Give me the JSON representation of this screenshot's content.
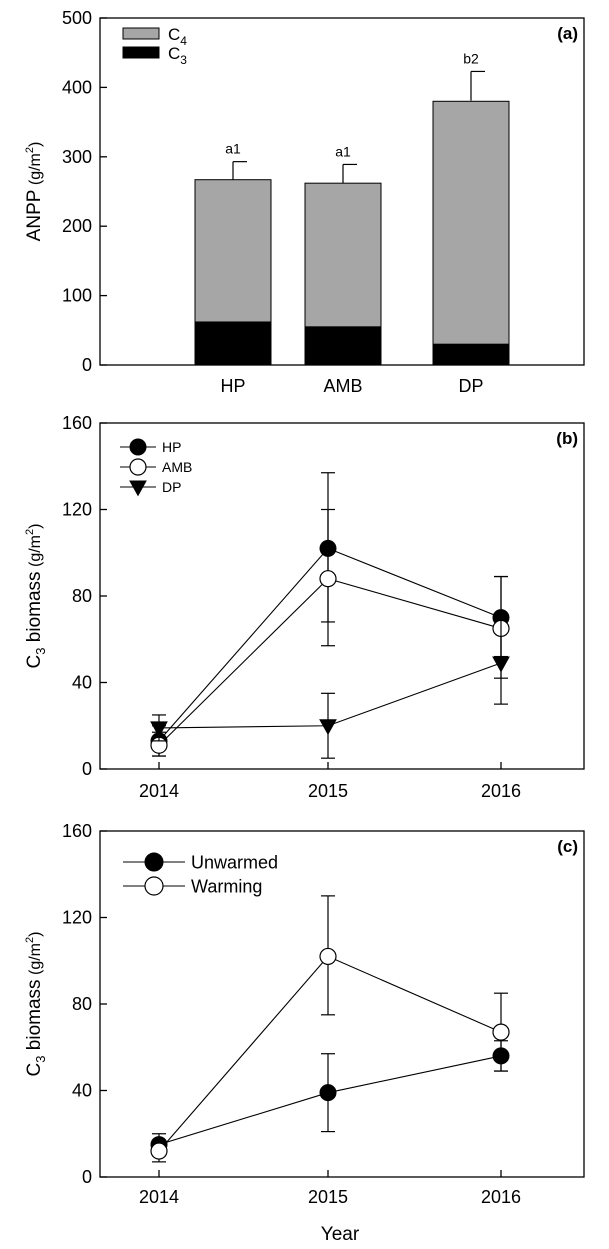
{
  "chart_data": [
    {
      "type": "bar",
      "stacked": true,
      "panel_label": "(a)",
      "ylabel_text": "ANPP",
      "ylabel_unit": "(g/m",
      "ylabel_unit_sup": "2",
      "ylabel_close": ")",
      "ylim": [
        0,
        500
      ],
      "yticks": [
        "0",
        "100",
        "200",
        "300",
        "400",
        "500"
      ],
      "categories": [
        "HP",
        "AMB",
        "DP"
      ],
      "series": [
        {
          "name": "C",
          "sub": "3",
          "color": "#000000",
          "values": [
            62,
            55,
            30
          ]
        },
        {
          "name": "C",
          "sub": "4",
          "color": "#a6a6a6",
          "values": [
            205,
            207,
            350
          ]
        }
      ],
      "totals": [
        267,
        262,
        381
      ],
      "error_upper": [
        293,
        289,
        423
      ],
      "annotations": [
        "a1",
        "a1",
        "b2"
      ],
      "legend_position": "top-left",
      "grid": false
    },
    {
      "type": "line",
      "panel_label": "(b)",
      "ylabel_text": "C",
      "ylabel_sub": "3",
      "ylabel_rest": " biomass",
      "ylabel_unit": "(g/m",
      "ylabel_unit_sup": "2",
      "ylabel_close": ")",
      "ylim": [
        0,
        160
      ],
      "yticks": [
        "0",
        "40",
        "80",
        "120",
        "160"
      ],
      "x": [
        "2014",
        "2015",
        "2016"
      ],
      "series": [
        {
          "name": "HP",
          "marker": "filled-circle",
          "values": [
            13,
            102,
            70
          ],
          "err_low": [
            6,
            68,
            52
          ],
          "err_high": [
            20,
            137,
            89
          ]
        },
        {
          "name": "AMB",
          "marker": "open-circle",
          "values": [
            11,
            88,
            65
          ],
          "err_low": [
            6,
            57,
            42
          ],
          "err_high": [
            17,
            120,
            89
          ]
        },
        {
          "name": "DP",
          "marker": "filled-triangle-down",
          "values": [
            19,
            20,
            49
          ],
          "err_low": [
            13,
            5,
            30
          ],
          "err_high": [
            25,
            35,
            70
          ]
        }
      ],
      "legend_position": "top-left",
      "grid": false
    },
    {
      "type": "line",
      "panel_label": "(c)",
      "ylabel_text": "C",
      "ylabel_sub": "3",
      "ylabel_rest": " biomass",
      "ylabel_unit": "(g/m",
      "ylabel_unit_sup": "2",
      "ylabel_close": ")",
      "xlabel": "Year",
      "ylim": [
        0,
        160
      ],
      "yticks": [
        "0",
        "40",
        "80",
        "120",
        "160"
      ],
      "x": [
        "2014",
        "2015",
        "2016"
      ],
      "series": [
        {
          "name": "Unwarmed",
          "marker": "filled-circle",
          "values": [
            15,
            39,
            56
          ],
          "err_low": [
            10,
            21,
            49
          ],
          "err_high": [
            20,
            57,
            63
          ]
        },
        {
          "name": "Warming",
          "marker": "open-circle",
          "values": [
            12,
            102,
            67
          ],
          "err_low": [
            7,
            75,
            49
          ],
          "err_high": [
            17,
            130,
            85
          ]
        }
      ],
      "legend_position": "top-left",
      "grid": false
    }
  ]
}
